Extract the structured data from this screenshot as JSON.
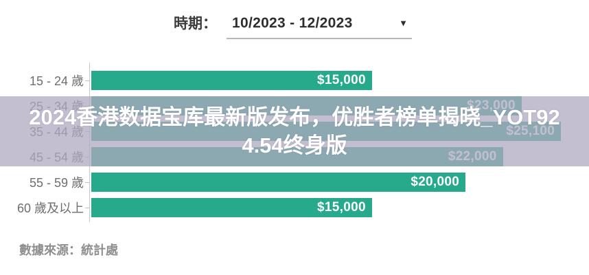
{
  "header": {
    "period_label": "時期：",
    "period_value": "10/2023 - 12/2023",
    "dropdown_arrow": "▼"
  },
  "overlay": {
    "title_line1": "2024香港数据宝库最新版发布，优胜者榜单揭晓_YOT92",
    "title_line2": "4.54终身版"
  },
  "chart_data": {
    "type": "bar",
    "orientation": "horizontal",
    "title": "",
    "xlabel": "",
    "ylabel": "",
    "categories": [
      "15 - 24 歲",
      "25 - 34 歲",
      "35 - 44 歲",
      "45 - 54 歲",
      "55 - 59 歲",
      "60 歲及以上"
    ],
    "values": [
      15000,
      23000,
      25100,
      22000,
      20000,
      15000
    ],
    "value_labels": [
      "$15,000",
      "$23,000",
      "$25,100",
      "$22,000",
      "$20,000",
      "$15,000"
    ],
    "xlim": [
      0,
      26600
    ],
    "grid": false,
    "legend": false,
    "bar_color": "#27aa8b"
  },
  "footer": {
    "source": "數據來源：統計處"
  },
  "colors": {
    "bar_green": "#27aa8b",
    "overlay_lavender": "#b0a8c0",
    "axis_gray": "#c9c9c9",
    "label_gray": "#6e6e6e",
    "text_dark": "#2e2e2e",
    "banner_text": "#ffffff"
  }
}
